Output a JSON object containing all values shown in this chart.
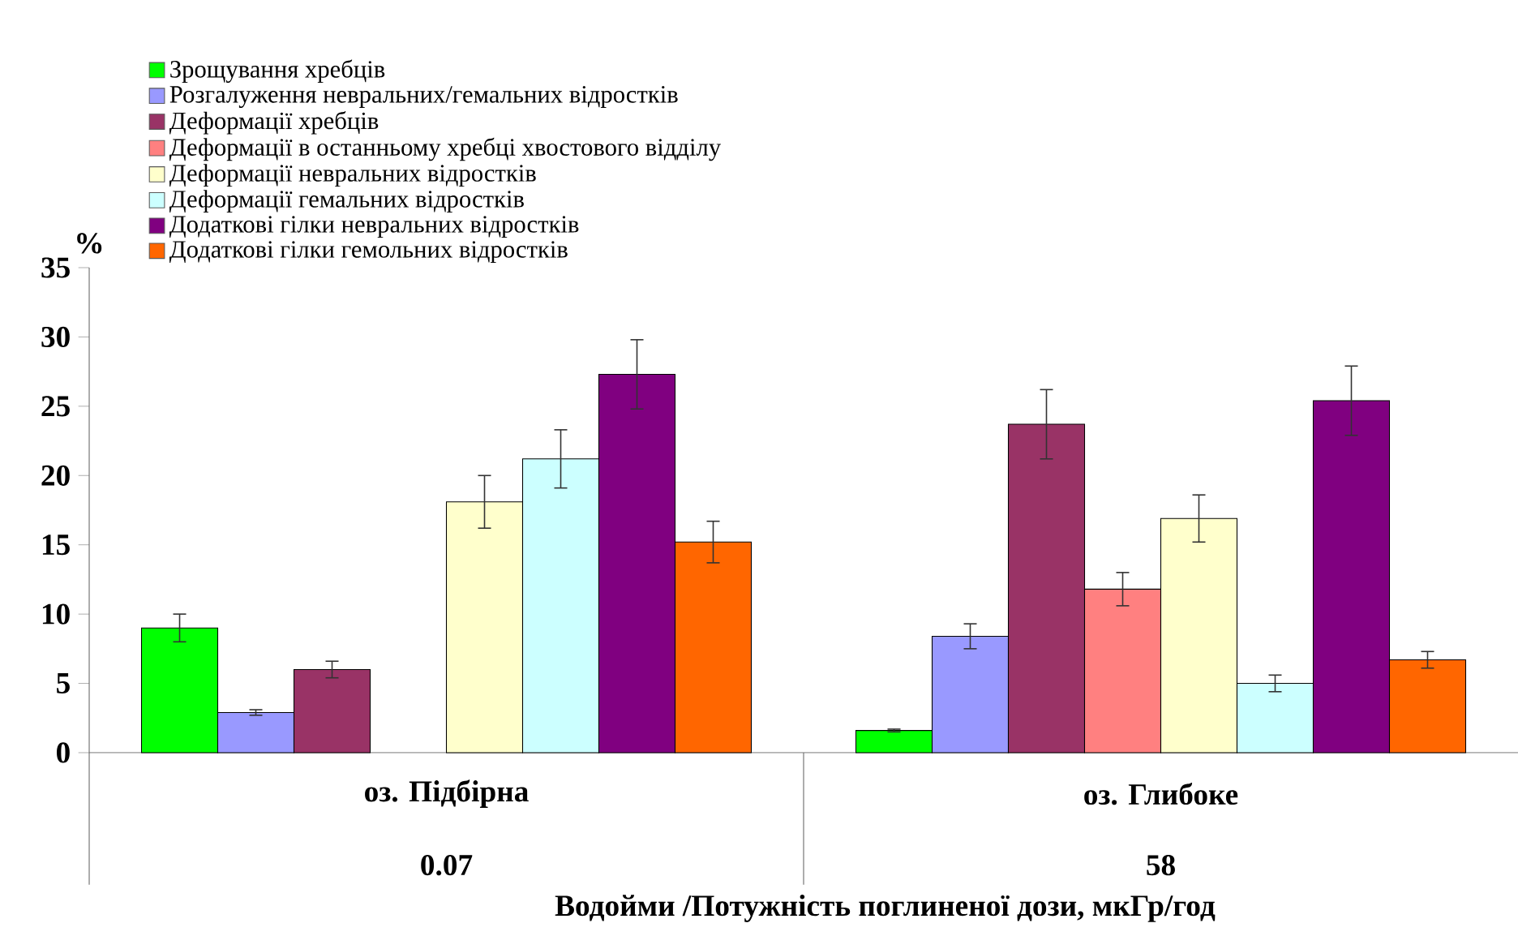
{
  "chart_data": {
    "type": "bar",
    "ylabel": "%",
    "xlabel": "Водойми /Потужність поглиненої дози, мкГр/год",
    "categories": [
      "оз. Підбірна",
      "оз. Глибоке"
    ],
    "annotations": [
      "0.07",
      "58"
    ],
    "ylim": [
      0,
      35
    ],
    "yticks": [
      0,
      5,
      10,
      15,
      20,
      25,
      30,
      35
    ],
    "legend": "top left",
    "series": [
      {
        "name": "Зрощування хребців",
        "color": "#00ff00",
        "values": [
          9.0,
          1.6
        ],
        "errors": [
          1.0,
          0.1
        ]
      },
      {
        "name": "Розгалуження невральних/гемальних відростків",
        "color": "#9999ff",
        "values": [
          2.9,
          8.4
        ],
        "errors": [
          0.2,
          0.9
        ]
      },
      {
        "name": "Деформації хребців",
        "color": "#993366",
        "values": [
          6.0,
          23.7
        ],
        "errors": [
          0.6,
          2.5
        ]
      },
      {
        "name": "Деформації в останньому хребці хвостового відділу",
        "color": "#ff8080",
        "values": [
          null,
          11.8
        ],
        "errors": [
          null,
          1.2
        ]
      },
      {
        "name": "Деформації невральних відростків",
        "color": "#ffffcc",
        "values": [
          18.1,
          16.9
        ],
        "errors": [
          1.9,
          1.7
        ]
      },
      {
        "name": "Деформації гемальних відростків",
        "color": "#ccffff",
        "values": [
          21.2,
          5.0
        ],
        "errors": [
          2.1,
          0.6
        ]
      },
      {
        "name": "Додаткові гілки невральних відростків",
        "color": "#800080",
        "values": [
          27.3,
          25.4
        ],
        "errors": [
          2.5,
          2.5
        ]
      },
      {
        "name": "Додаткові гілки гемольних відростків",
        "color": "#ff6600",
        "values": [
          15.2,
          6.7
        ],
        "errors": [
          1.5,
          0.6
        ]
      }
    ]
  }
}
